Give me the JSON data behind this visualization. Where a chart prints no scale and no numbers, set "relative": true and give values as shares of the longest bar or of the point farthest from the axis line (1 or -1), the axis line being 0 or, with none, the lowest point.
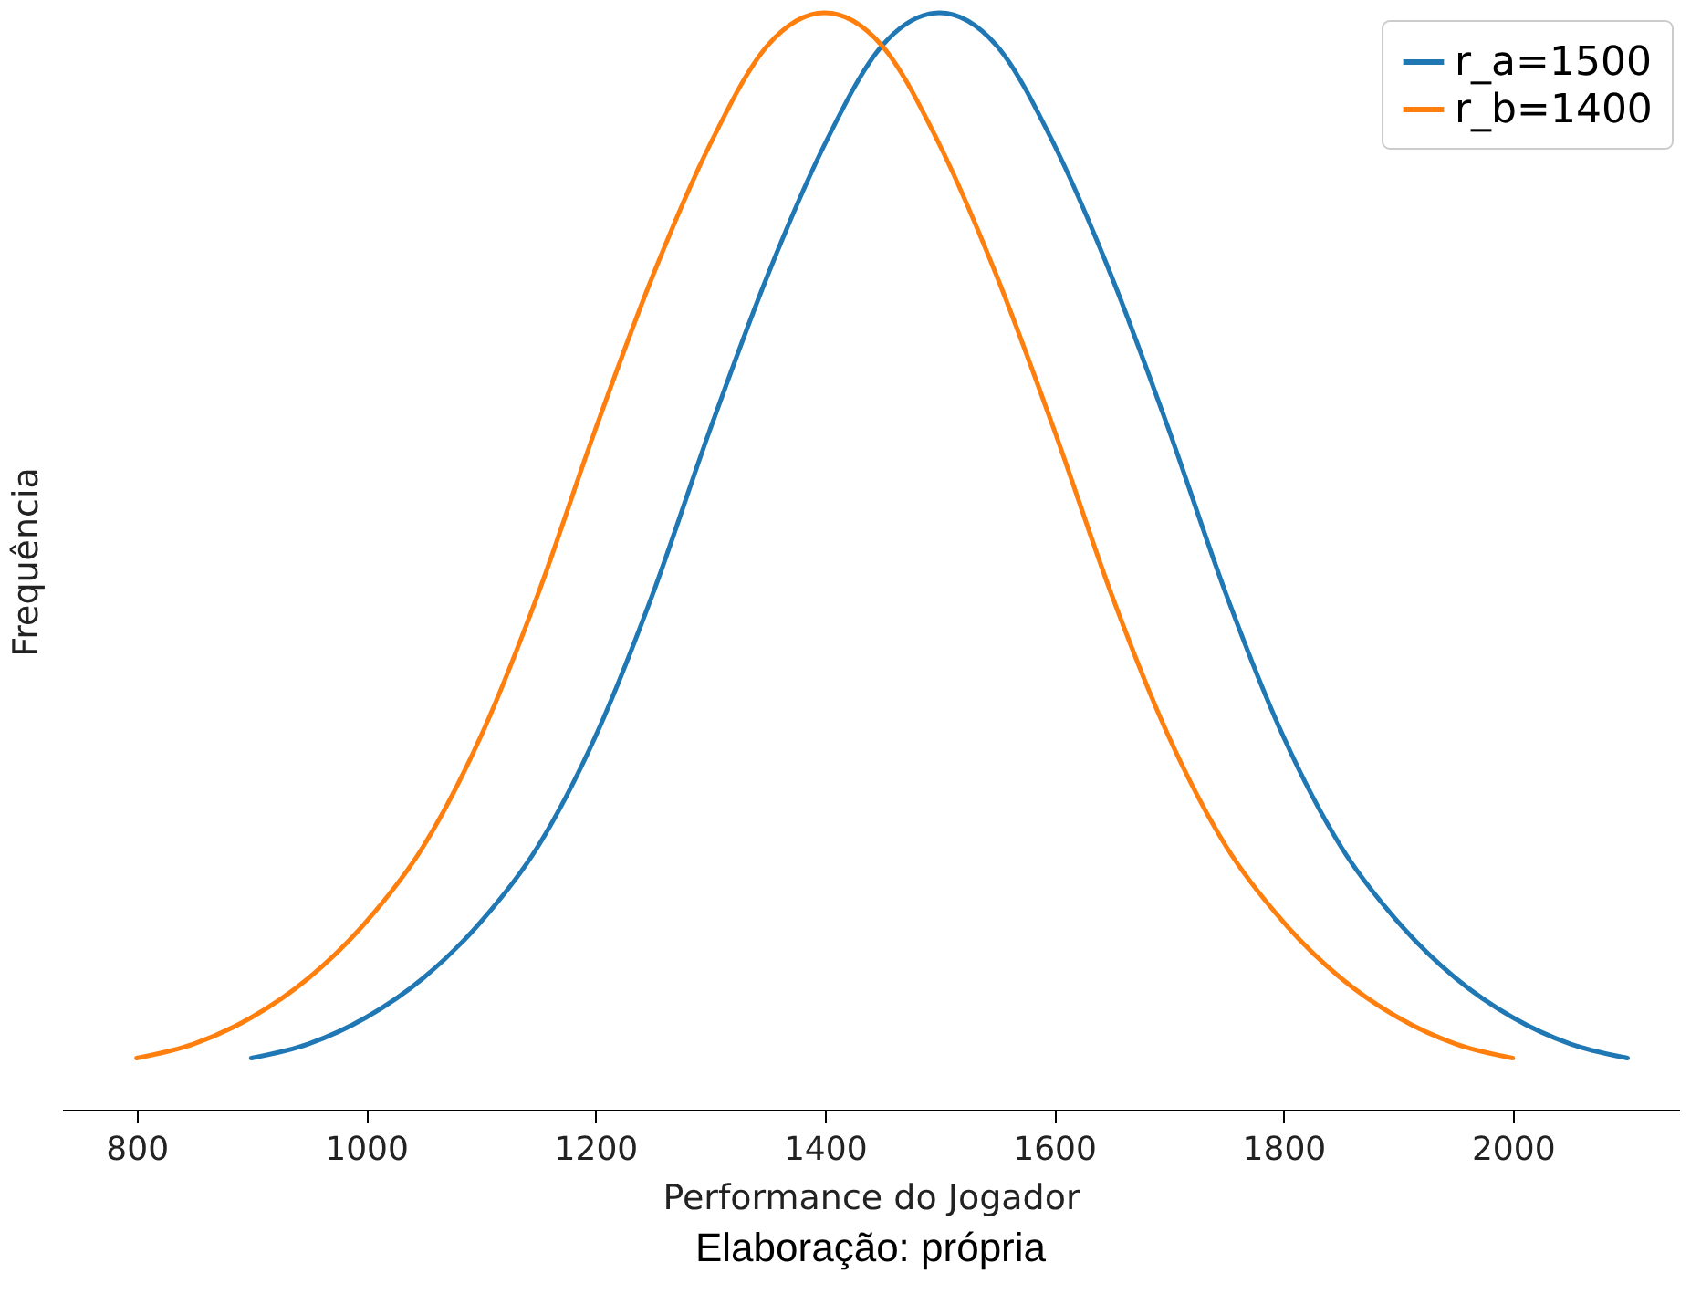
{
  "chart_data": {
    "type": "line",
    "relative": true,
    "xlabel": "Performance do Jogador",
    "ylabel": "Frequência",
    "annotations": [
      "Elaboração: própria"
    ],
    "xlim": [
      735,
      2145
    ],
    "xticks": [
      800,
      1000,
      1200,
      1400,
      1600,
      1800,
      2000
    ],
    "legend": "top right",
    "grid": false,
    "marker": "none",
    "line_style": "solid",
    "tick_labels": "x",
    "series": [
      {
        "name": "r_a=1500",
        "color": "#1f77b4",
        "x": [
          900,
          950,
          1000,
          1050,
          1100,
          1150,
          1200,
          1250,
          1300,
          1350,
          1400,
          1450,
          1500,
          1550,
          1600,
          1650,
          1700,
          1750,
          1800,
          1850,
          1900,
          1950,
          2000,
          2050,
          2100
        ],
        "values": [
          0.047,
          0.06,
          0.084,
          0.12,
          0.171,
          0.24,
          0.34,
          0.47,
          0.62,
          0.76,
          0.88,
          0.97,
          1.0,
          0.97,
          0.88,
          0.76,
          0.62,
          0.47,
          0.34,
          0.24,
          0.171,
          0.12,
          0.084,
          0.06,
          0.047
        ]
      },
      {
        "name": "r_b=1400",
        "color": "#ff7f0e",
        "x": [
          800,
          850,
          900,
          950,
          1000,
          1050,
          1100,
          1150,
          1200,
          1250,
          1300,
          1350,
          1400,
          1450,
          1500,
          1550,
          1600,
          1650,
          1700,
          1750,
          1800,
          1850,
          1900,
          1950,
          2000
        ],
        "values": [
          0.047,
          0.06,
          0.084,
          0.12,
          0.171,
          0.24,
          0.34,
          0.47,
          0.62,
          0.76,
          0.88,
          0.97,
          1.0,
          0.97,
          0.88,
          0.76,
          0.62,
          0.47,
          0.34,
          0.24,
          0.171,
          0.12,
          0.084,
          0.06,
          0.047
        ]
      }
    ]
  }
}
